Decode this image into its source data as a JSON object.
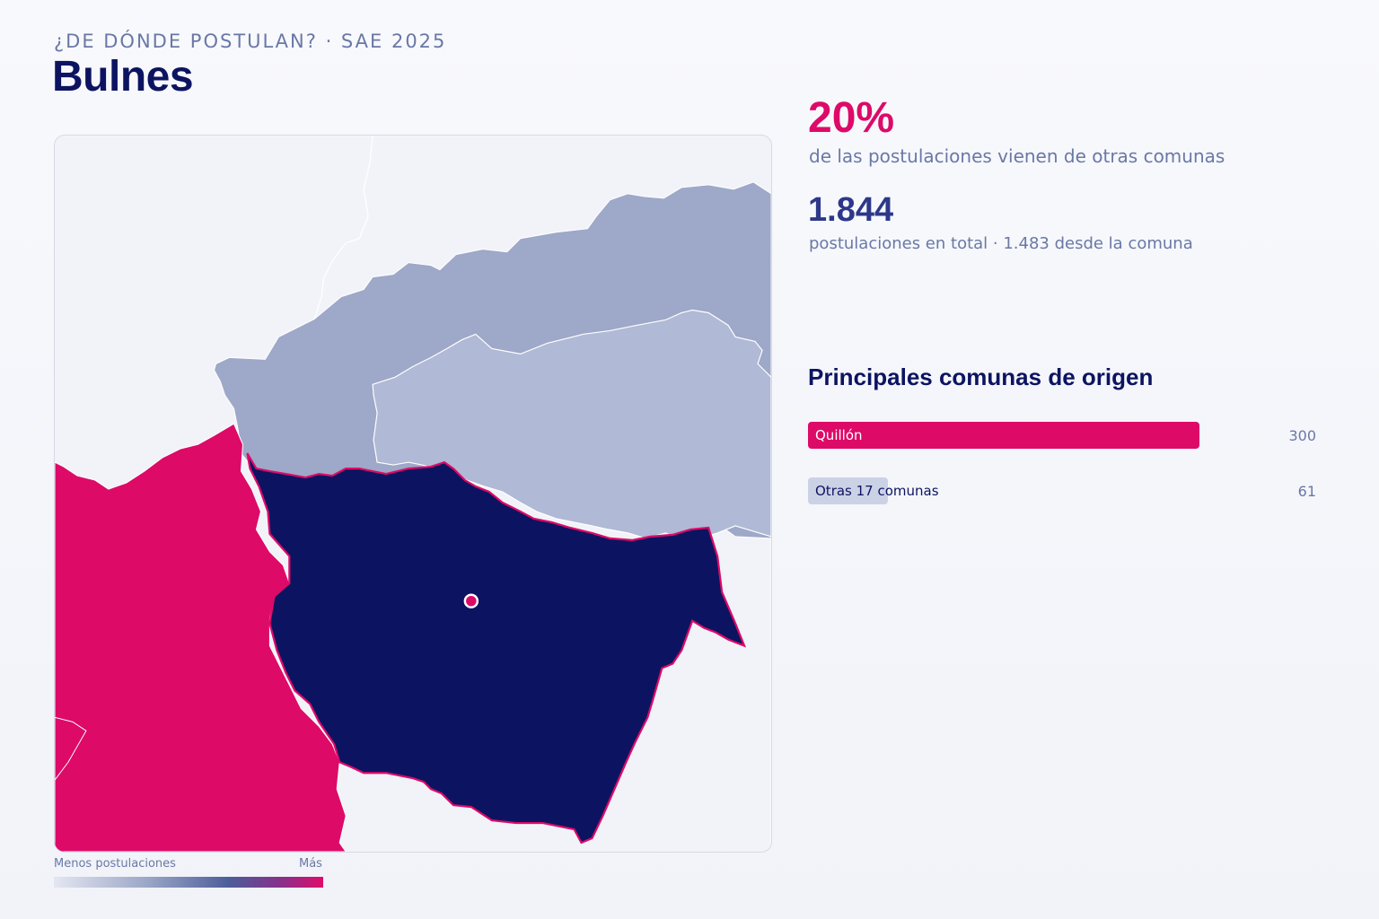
{
  "header": {
    "kicker": "¿DE DÓNDE POSTULAN? · SAE 2025",
    "title": "Bulnes"
  },
  "stats": {
    "external_share": "20%",
    "external_share_caption": "de las postulaciones vienen de otras comunas",
    "total": "1.844",
    "total_caption": "postulaciones en total · 1.483 desde la comuna"
  },
  "origins": {
    "title": "Principales comunas de origen",
    "rows": [
      {
        "label": "Quillón",
        "value": "300",
        "share": 0.77,
        "color": "#dd0a68",
        "text_color": "#ffffff"
      },
      {
        "label": "Otras 17 comunas",
        "value": "61",
        "share": 0.157,
        "color": "#ccd2e5",
        "text_color": "#0c1461"
      }
    ]
  },
  "legend": {
    "low_label": "Menos postulaciones",
    "high_label": "Más",
    "colors": [
      "#e4e7f1",
      "#9aa6c6",
      "#4c5d9a",
      "#e00b6a"
    ]
  },
  "map": {
    "colors": {
      "home": "#0c1461",
      "highest": "#dd0a68",
      "medium": "#9ea8c8",
      "low": "#b0b9d5",
      "background": "#f1f3f8",
      "marker": "#dd0a68"
    }
  }
}
